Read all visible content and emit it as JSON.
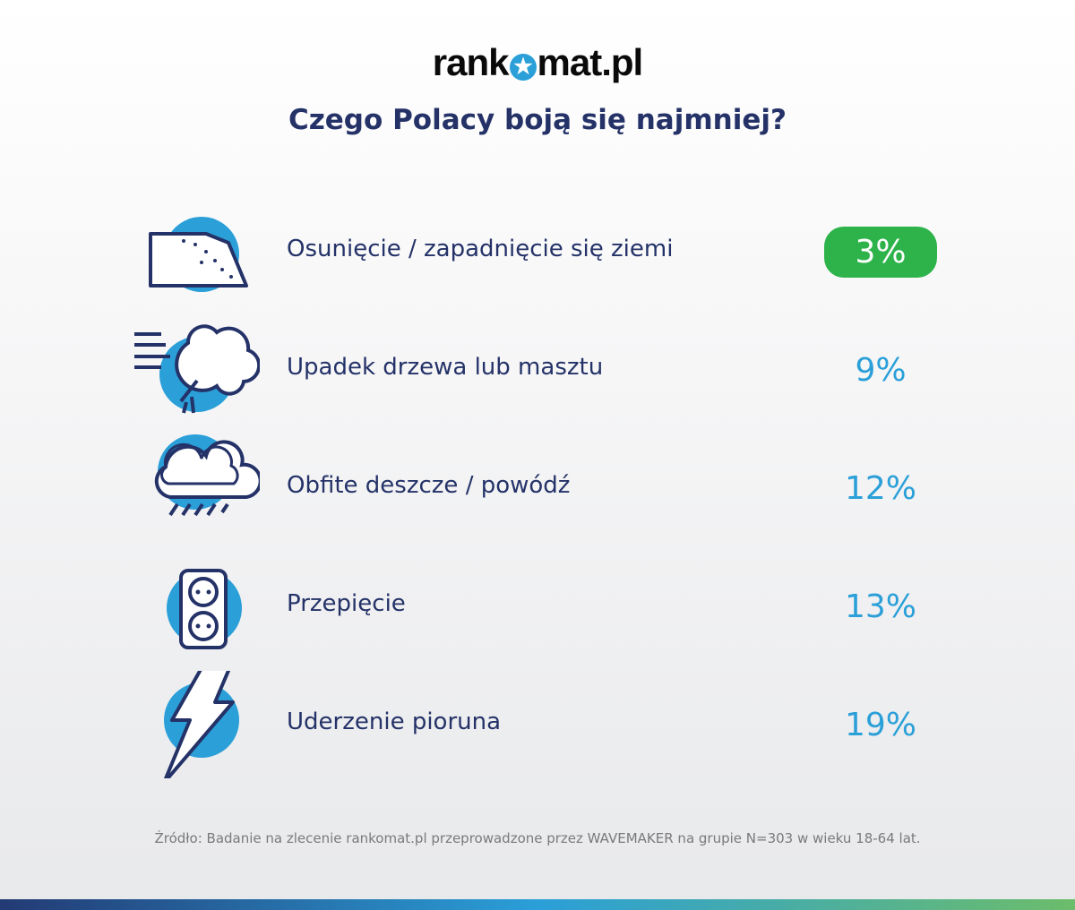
{
  "logo": {
    "left": "rank",
    "star": "★",
    "right": "mat.pl"
  },
  "title": "Czego Polacy boją się najmniej?",
  "colors": {
    "navy": "#243268",
    "blue": "#2a9fd8",
    "green": "#2db34a"
  },
  "chart_data": {
    "type": "table",
    "title": "Czego Polacy boją się najmniej?",
    "categories": [
      "Osunięcie / zapadnięcie się ziemi",
      "Upadek drzewa lub masztu",
      "Obfite deszcze / powódź",
      "Przepięcie",
      "Uderzenie pioruna"
    ],
    "values": [
      3,
      9,
      12,
      13,
      19
    ],
    "labels": [
      "3%",
      "9%",
      "12%",
      "13%",
      "19%"
    ],
    "icons": [
      "landslide-icon",
      "falling-tree-icon",
      "rain-cloud-icon",
      "power-socket-icon",
      "lightning-icon"
    ],
    "highlighted": 0
  },
  "source": "Źródło: Badanie na zlecenie rankomat.pl przeprowadzone przez WAVEMAKER na grupie N=303 w wieku 18-64 lat."
}
